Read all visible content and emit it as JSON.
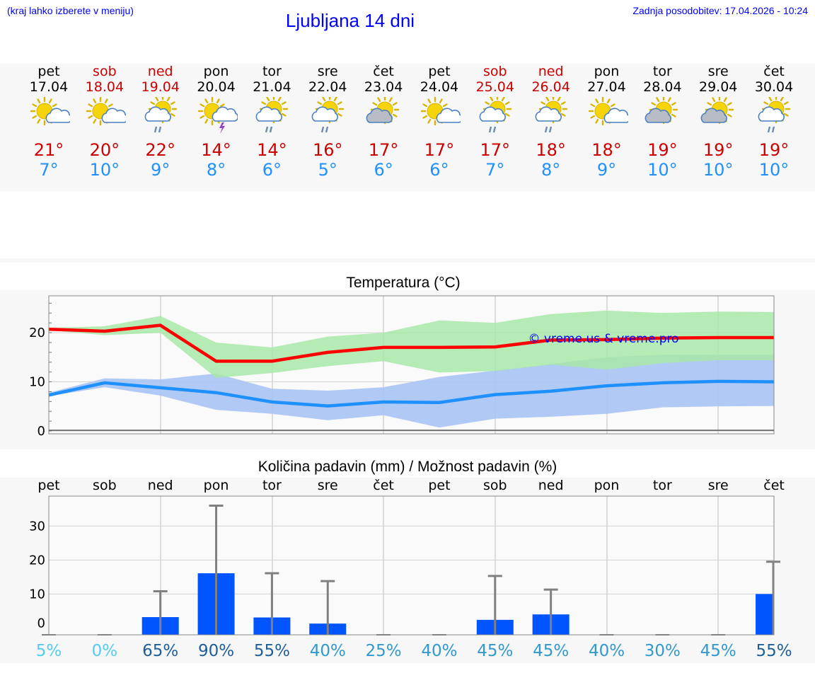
{
  "header": {
    "note": "(kraj lahko izberete v meniju)",
    "title": "Ljubljana 14 dni",
    "updated": "Zadnja posodobitev: 17.04.2026 - 10:24"
  },
  "days": [
    {
      "name": "pet",
      "date": "17.04",
      "weekend": false,
      "icon": "sun-cloud-icon",
      "tmax": "21°",
      "tmin": "7°"
    },
    {
      "name": "sob",
      "date": "18.04",
      "weekend": true,
      "icon": "sun-cloud-icon",
      "tmax": "20°",
      "tmin": "10°"
    },
    {
      "name": "ned",
      "date": "19.04",
      "weekend": true,
      "icon": "sun-rain-cloud-icon",
      "tmax": "22°",
      "tmin": "9°"
    },
    {
      "name": "pon",
      "date": "20.04",
      "weekend": false,
      "icon": "sun-thunder-icon",
      "tmax": "14°",
      "tmin": "8°"
    },
    {
      "name": "tor",
      "date": "21.04",
      "weekend": false,
      "icon": "sun-rain-cloud-icon",
      "tmax": "14°",
      "tmin": "6°"
    },
    {
      "name": "sre",
      "date": "22.04",
      "weekend": false,
      "icon": "sun-rain-cloud-icon",
      "tmax": "16°",
      "tmin": "5°"
    },
    {
      "name": "čet",
      "date": "23.04",
      "weekend": false,
      "icon": "sun-grey-cloud-icon",
      "tmax": "17°",
      "tmin": "6°"
    },
    {
      "name": "pet",
      "date": "24.04",
      "weekend": false,
      "icon": "sun-cloud-icon",
      "tmax": "17°",
      "tmin": "6°"
    },
    {
      "name": "sob",
      "date": "25.04",
      "weekend": true,
      "icon": "sun-rain-cloud-icon",
      "tmax": "17°",
      "tmin": "7°"
    },
    {
      "name": "ned",
      "date": "26.04",
      "weekend": true,
      "icon": "sun-rain-cloud-icon",
      "tmax": "18°",
      "tmin": "8°"
    },
    {
      "name": "pon",
      "date": "27.04",
      "weekend": false,
      "icon": "sun-cloud-icon",
      "tmax": "18°",
      "tmin": "9°"
    },
    {
      "name": "tor",
      "date": "28.04",
      "weekend": false,
      "icon": "sun-grey-cloud-icon",
      "tmax": "19°",
      "tmin": "10°"
    },
    {
      "name": "sre",
      "date": "29.04",
      "weekend": false,
      "icon": "sun-grey-cloud-icon",
      "tmax": "19°",
      "tmin": "10°"
    },
    {
      "name": "čet",
      "date": "30.04",
      "weekend": false,
      "icon": "sun-rain-cloud-icon",
      "tmax": "19°",
      "tmin": "10°"
    }
  ],
  "colors": {
    "max_line": "#ff0000",
    "min_line": "#1e90ff",
    "max_band": "#a8e8a8",
    "min_band": "#a8c4f4",
    "bar": "#0055ff",
    "whisker": "#808080",
    "weekend_text": "#cc0000",
    "link": "#0000ff"
  },
  "chart_data": [
    {
      "type": "line",
      "title": "Temperatura (°C)",
      "x": [
        "pet",
        "sob",
        "ned",
        "pon",
        "tor",
        "sre",
        "čet",
        "pet",
        "sob",
        "ned",
        "pon",
        "tor",
        "sre",
        "čet"
      ],
      "yticks": [
        0,
        10,
        20
      ],
      "ylim": [
        0,
        27.5
      ],
      "watermark": "© vreme.us & vreme.pro",
      "series": [
        {
          "name": "max",
          "values": [
            20.7,
            20.3,
            21.5,
            14.2,
            14.2,
            16.0,
            17.0,
            17.0,
            17.1,
            18.5,
            18.6,
            18.9,
            19.0,
            19.0
          ],
          "band_low": [
            20.5,
            19.5,
            20.0,
            10.8,
            11.8,
            13.2,
            14.2,
            11.9,
            12.2,
            13.5,
            12.5,
            13.8,
            14.4,
            14.4
          ],
          "band_high": [
            21.0,
            21.3,
            23.4,
            18.0,
            17.0,
            19.2,
            20.0,
            22.5,
            22.0,
            23.8,
            24.5,
            24.0,
            24.3,
            24.2
          ]
        },
        {
          "name": "min",
          "values": [
            7.3,
            9.8,
            8.8,
            7.8,
            5.9,
            5.1,
            5.9,
            5.8,
            7.4,
            8.1,
            9.2,
            9.8,
            10.1,
            10.0
          ],
          "band_low": [
            7.1,
            8.9,
            7.2,
            4.3,
            3.5,
            2.2,
            3.2,
            0.7,
            2.5,
            2.9,
            3.5,
            4.8,
            5.0,
            5.1
          ],
          "band_high": [
            7.8,
            10.7,
            10.5,
            11.7,
            8.6,
            8.2,
            8.9,
            11.0,
            12.3,
            13.6,
            15.0,
            15.5,
            15.5,
            15.5
          ]
        }
      ]
    },
    {
      "type": "bar",
      "title": "Količina padavin (mm) / Možnost padavin (%)",
      "categories": [
        "pet",
        "sob",
        "ned",
        "pon",
        "tor",
        "sre",
        "čet",
        "pet",
        "sob",
        "ned",
        "pon",
        "tor",
        "sre",
        "čet"
      ],
      "values": [
        0,
        0,
        3.2,
        16.1,
        3.1,
        1.3,
        0,
        0,
        2.4,
        4.0,
        0,
        0,
        0,
        10.0
      ],
      "whisker_max": [
        0,
        0,
        10.8,
        36.0,
        16.1,
        13.8,
        0,
        0,
        15.3,
        11.3,
        0,
        0,
        0,
        19.5
      ],
      "probability": [
        "5%",
        "0%",
        "65%",
        "90%",
        "55%",
        "40%",
        "25%",
        "40%",
        "45%",
        "45%",
        "40%",
        "30%",
        "45%",
        "55%"
      ],
      "probability_colors": [
        "#55ccee",
        "#55ccee",
        "#1f5f99",
        "#1f5f99",
        "#1f5f99",
        "#3399cc",
        "#3399cc",
        "#3399cc",
        "#3399cc",
        "#3399cc",
        "#3399cc",
        "#3399cc",
        "#3399cc",
        "#1f5f99"
      ],
      "yticks": [
        0,
        10,
        20,
        30
      ],
      "ylim": [
        -2,
        38.8
      ]
    }
  ]
}
